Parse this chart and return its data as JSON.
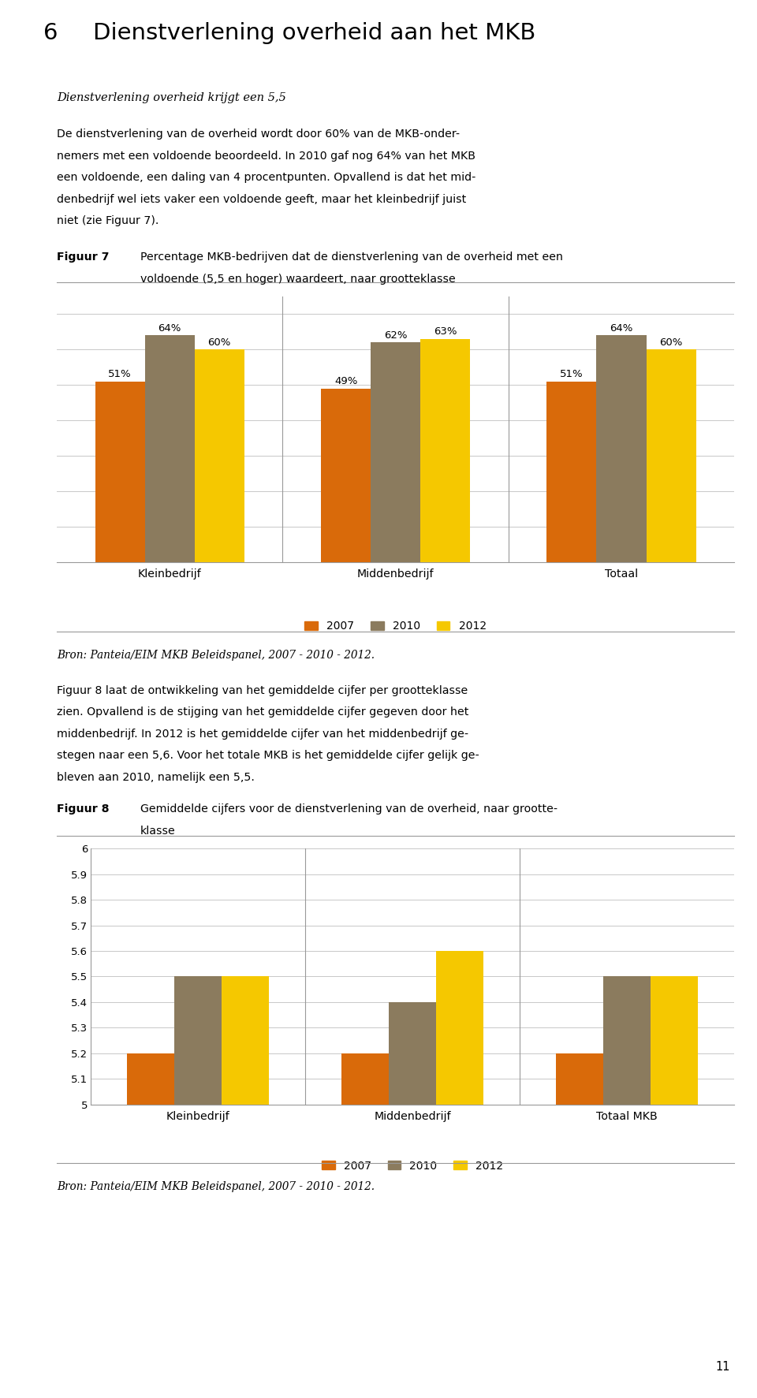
{
  "page_number": "11",
  "chapter_number": "6",
  "chapter_title": "Dienstverlening overheid aan het MKB",
  "subtitle_italic": "Dienstverlening overheid krijgt een 5,5",
  "fig7_label": "Figuur 7",
  "fig7_title_line1": "Percentage MKB-bedrijven dat de dienstverlening van de overheid met een",
  "fig7_title_line2": "voldoende (5,5 en hoger) waardeert, naar grootteklasse",
  "fig7_categories": [
    "Kleinbedrijf",
    "Middenbedrijf",
    "Totaal"
  ],
  "fig7_series": {
    "2007": [
      51,
      49,
      51
    ],
    "2010": [
      64,
      62,
      64
    ],
    "2012": [
      60,
      63,
      60
    ]
  },
  "fig7_colors": {
    "2007": "#D96A0A",
    "2010": "#8B7B5E",
    "2012": "#F5C800"
  },
  "source_text_1": "Bron: Panteia/EIM MKB Beleidspanel, 2007 - 2010 - 2012.",
  "body2_line1": "Figuur 8 laat de ontwikkeling van het gemiddelde cijfer per grootteklasse",
  "body2_line2": "zien. Opvallend is de stijging van het gemiddelde cijfer gegeven door het",
  "body2_line3": "middenbedrijf. In 2012 is het gemiddelde cijfer van het middenbedrijf ge-",
  "body2_line4": "stegen naar een 5,6. Voor het totale MKB is het gemiddelde cijfer gelijk ge-",
  "body2_line5": "bleven aan 2010, namelijk een 5,5.",
  "fig8_label": "Figuur 8",
  "fig8_title_line1": "Gemiddelde cijfers voor de dienstverlening van de overheid, naar grootte-",
  "fig8_title_line2": "klasse",
  "fig8_categories": [
    "Kleinbedrijf",
    "Middenbedrijf",
    "Totaal MKB"
  ],
  "fig8_series": {
    "2007": [
      5.2,
      5.2,
      5.2
    ],
    "2010": [
      5.5,
      5.4,
      5.5
    ],
    "2012": [
      5.5,
      5.6,
      5.5
    ]
  },
  "fig8_colors": {
    "2007": "#D96A0A",
    "2010": "#8B7B5E",
    "2012": "#F5C800"
  },
  "fig8_yticks": [
    5.0,
    5.1,
    5.2,
    5.3,
    5.4,
    5.5,
    5.6,
    5.7,
    5.8,
    5.9,
    6.0
  ],
  "fig8_ytick_labels": [
    "5",
    "5.1",
    "5.2",
    "5.3",
    "5.4",
    "5.5",
    "5.6",
    "5.7",
    "5.8",
    "5.9",
    "6"
  ],
  "source_text_2": "Bron: Panteia/EIM MKB Beleidspanel, 2007 - 2010 - 2012.",
  "legend_labels": [
    "2007",
    "2010",
    "2012"
  ],
  "background_color": "#FFFFFF",
  "grid_color": "#C8C8C8",
  "text_color": "#000000",
  "bar_width": 0.22
}
